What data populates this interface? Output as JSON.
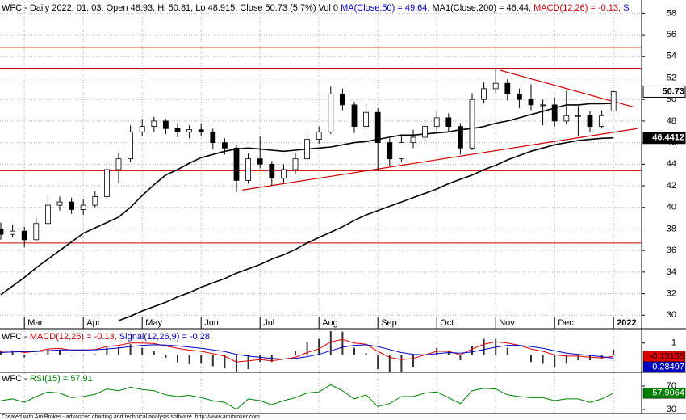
{
  "chart_data": [
    {
      "type": "candlestick",
      "title_parts": [
        {
          "text": "WFC - Daily 2022. 01. 03. Open 48.93, Hi 50.81, Lo 48.915, Close 50.73 (5.7%) Vol 0 ",
          "color": "#000000"
        },
        {
          "text": "MA(Close,50) = 49.64, ",
          "color": "#0000c0"
        },
        {
          "text": "MA1(Close,200) = 46.44, ",
          "color": "#000000"
        },
        {
          "text": "MACD(12,26) = -0.13, ",
          "color": "#c00000"
        },
        {
          "text": "S",
          "color": "#0000c0"
        }
      ],
      "categories": [
        null,
        null,
        "Mar",
        null,
        null,
        null,
        null,
        "Apr",
        null,
        null,
        null,
        null,
        "May",
        null,
        null,
        null,
        null,
        "Jun",
        null,
        null,
        null,
        null,
        "Jul",
        null,
        null,
        null,
        null,
        "Aug",
        null,
        null,
        null,
        null,
        "Sep",
        null,
        null,
        null,
        null,
        "Oct",
        null,
        null,
        null,
        null,
        "Nov",
        null,
        null,
        null,
        null,
        "Dec",
        null,
        null,
        null,
        null,
        "2022"
      ],
      "open": [
        38.0,
        37.5,
        37.8,
        37.0,
        38.5,
        40.2,
        40.5,
        39.8,
        40.2,
        41.0,
        43.5,
        44.5,
        47.0,
        47.5,
        48.0,
        47.3,
        47.0,
        47.2,
        47.0,
        46.0,
        45.5,
        42.5,
        44.5,
        44.0,
        42.7,
        43.5,
        44.5,
        46.3,
        47.0,
        50.5,
        49.5,
        47.5,
        48.8,
        46.0,
        44.5,
        46.0,
        46.5,
        47.5,
        48.3,
        47.5,
        45.5,
        50.0,
        51.0,
        51.5,
        50.5,
        50.0,
        49.5,
        49.5,
        48.0,
        48.5,
        48.5,
        47.5,
        48.93
      ],
      "high": [
        38.6,
        38.4,
        38.2,
        39.0,
        41.2,
        41.0,
        40.9,
        40.8,
        41.5,
        44.2,
        45.0,
        47.6,
        48.2,
        48.4,
        48.2,
        47.8,
        47.6,
        47.8,
        47.3,
        46.4,
        45.8,
        45.0,
        46.6,
        44.3,
        44.0,
        45.0,
        46.8,
        47.5,
        51.2,
        51.0,
        49.8,
        49.6,
        49.2,
        46.4,
        46.6,
        47.2,
        48.2,
        48.9,
        48.7,
        47.8,
        50.6,
        51.6,
        52.8,
        51.9,
        51.0,
        51.4,
        50.0,
        50.2,
        50.8,
        49.4,
        48.9,
        49.0,
        50.81
      ],
      "low": [
        37.0,
        37.2,
        36.3,
        36.8,
        38.3,
        39.7,
        39.4,
        39.3,
        40.0,
        40.8,
        42.3,
        44.2,
        46.6,
        47.0,
        46.8,
        46.5,
        46.4,
        46.6,
        45.4,
        44.9,
        41.4,
        42.2,
        43.6,
        42.0,
        42.3,
        43.1,
        44.2,
        45.9,
        46.8,
        49.0,
        46.9,
        47.2,
        43.4,
        43.8,
        44.2,
        45.5,
        46.2,
        47.1,
        47.0,
        44.9,
        45.3,
        49.6,
        50.6,
        49.9,
        49.2,
        49.0,
        47.6,
        47.5,
        47.7,
        46.6,
        47.0,
        47.3,
        48.915
      ],
      "close": [
        37.5,
        37.8,
        37.0,
        38.5,
        40.2,
        40.5,
        39.8,
        40.2,
        41.0,
        43.5,
        44.5,
        47.0,
        47.5,
        48.0,
        47.3,
        47.0,
        47.2,
        47.0,
        46.0,
        45.5,
        42.5,
        44.5,
        44.0,
        42.7,
        43.5,
        44.5,
        46.3,
        47.0,
        50.5,
        49.5,
        47.5,
        48.8,
        46.0,
        44.5,
        46.0,
        46.5,
        47.5,
        48.3,
        47.5,
        45.5,
        50.0,
        51.0,
        51.5,
        50.5,
        50.0,
        49.5,
        49.5,
        48.0,
        48.5,
        48.5,
        47.5,
        48.5,
        50.73
      ],
      "series": [
        {
          "color": "#000000",
          "values": [
            31.9,
            32.7,
            33.5,
            34.4,
            35.2,
            36.0,
            36.8,
            37.6,
            38.1,
            38.6,
            39.1,
            40.0,
            41.1,
            42.1,
            43.0,
            43.5,
            44.1,
            44.6,
            44.9,
            45.2,
            45.4,
            45.5,
            45.4,
            45.3,
            45.2,
            45.3,
            45.4,
            45.5,
            45.6,
            45.8,
            46.0,
            46.1,
            46.3,
            46.5,
            46.7,
            46.7,
            46.8,
            46.9,
            47.0,
            47.2,
            47.3,
            47.5,
            47.8,
            48.0,
            48.3,
            48.6,
            48.9,
            49.2,
            49.5,
            49.5,
            49.6,
            49.6,
            49.64
          ]
        },
        {
          "color": "#000000",
          "values": [
            null,
            null,
            null,
            null,
            null,
            null,
            null,
            null,
            null,
            null,
            29.5,
            29.9,
            30.4,
            30.8,
            31.2,
            31.7,
            32.1,
            32.6,
            33.0,
            33.4,
            33.9,
            34.3,
            34.7,
            35.2,
            35.6,
            36.1,
            36.7,
            37.2,
            37.7,
            38.2,
            38.8,
            39.3,
            39.7,
            40.1,
            40.5,
            40.9,
            41.3,
            41.7,
            42.2,
            42.6,
            43.0,
            43.5,
            43.9,
            44.4,
            44.8,
            45.2,
            45.5,
            45.8,
            46.0,
            46.2,
            46.3,
            46.4,
            46.44
          ]
        }
      ],
      "hlines": [
        54.8,
        52.9,
        43.4,
        36.7
      ],
      "trendlines": [
        [
          [
            42.4,
            52.7
          ],
          [
            53.7,
            49.3
          ]
        ],
        [
          [
            20.5,
            41.6
          ],
          [
            54.0,
            47.3
          ]
        ]
      ],
      "line_color": "#d00000",
      "price_labels": [
        {
          "value": 50.73,
          "fill": "#ffffff",
          "text_color": "#000000"
        },
        {
          "value": 46.4412,
          "fill": "#000000",
          "text_color": "#ffffff"
        }
      ],
      "ylim": [
        28.9,
        59.0
      ],
      "yticks": [
        30,
        32,
        34,
        36,
        38,
        40,
        42,
        44,
        46,
        48,
        50,
        52,
        54,
        56,
        58
      ],
      "grid": true
    },
    {
      "type": "line",
      "title_parts": [
        {
          "text": "WFC - ",
          "color": "#000000"
        },
        {
          "text": "MACD(12,26) = -0.13, ",
          "color": "#c00000"
        },
        {
          "text": "Signal(12,26,9) = -0.28",
          "color": "#0000c0"
        }
      ],
      "series": [
        {
          "color": "#e00000",
          "values": [
            0.3,
            0.35,
            0.2,
            0.3,
            0.5,
            0.55,
            0.4,
            0.4,
            0.45,
            0.7,
            0.8,
            1.0,
            1.0,
            0.95,
            0.75,
            0.55,
            0.4,
            0.3,
            0.1,
            -0.1,
            -0.6,
            -0.5,
            -0.4,
            -0.5,
            -0.35,
            -0.2,
            0.2,
            0.5,
            1.1,
            1.3,
            1.0,
            0.9,
            0.3,
            -0.2,
            -0.4,
            -0.3,
            0.0,
            0.3,
            0.3,
            0.0,
            0.5,
            0.9,
            1.1,
            1.0,
            0.8,
            0.5,
            0.3,
            0.0,
            -0.1,
            -0.1,
            -0.2,
            -0.25,
            -0.13
          ]
        },
        {
          "color": "#0000c0",
          "values": [
            0.2,
            0.25,
            0.27,
            0.28,
            0.35,
            0.42,
            0.42,
            0.42,
            0.43,
            0.5,
            0.58,
            0.7,
            0.8,
            0.85,
            0.83,
            0.76,
            0.66,
            0.55,
            0.42,
            0.28,
            0.05,
            -0.1,
            -0.2,
            -0.3,
            -0.35,
            -0.3,
            -0.15,
            0.05,
            0.35,
            0.65,
            0.8,
            0.85,
            0.7,
            0.45,
            0.2,
            0.05,
            0.0,
            0.1,
            0.2,
            0.15,
            0.25,
            0.45,
            0.65,
            0.8,
            0.8,
            0.7,
            0.55,
            0.35,
            0.15,
            0.05,
            -0.05,
            -0.15,
            -0.28
          ]
        }
      ],
      "histogram": true,
      "value_boxes": [
        {
          "value": -0.13155,
          "fill": "#e00000",
          "text_color": "#000000"
        },
        {
          "value": -0.28497,
          "fill": "#0000c0",
          "text_color": "#ffffff"
        }
      ],
      "ylim": [
        -1.4,
        2.0
      ],
      "yticks": [
        1
      ]
    },
    {
      "type": "line",
      "title_parts": [
        {
          "text": "WFC - ",
          "color": "#000000"
        },
        {
          "text": "RSI(15) = 57.91",
          "color": "#008000"
        }
      ],
      "series": [
        {
          "color": "#008000",
          "values": [
            45,
            48,
            42,
            52,
            60,
            58,
            50,
            52,
            56,
            65,
            62,
            68,
            64,
            62,
            55,
            52,
            54,
            50,
            45,
            42,
            30,
            48,
            45,
            38,
            45,
            50,
            58,
            60,
            72,
            62,
            48,
            55,
            35,
            40,
            52,
            52,
            58,
            60,
            50,
            40,
            62,
            66,
            65,
            55,
            52,
            50,
            50,
            45,
            48,
            48,
            42,
            48,
            57.91
          ]
        }
      ],
      "value_boxes": [
        {
          "value": 57.9064,
          "fill": "#008000",
          "text_color": "#ffffff"
        }
      ],
      "ylim": [
        23,
        92
      ],
      "yticks": [
        30,
        70
      ]
    }
  ],
  "footer": "Created with AmiBroker - advanced charting and technical analysis software. http://www.amibroker.com"
}
